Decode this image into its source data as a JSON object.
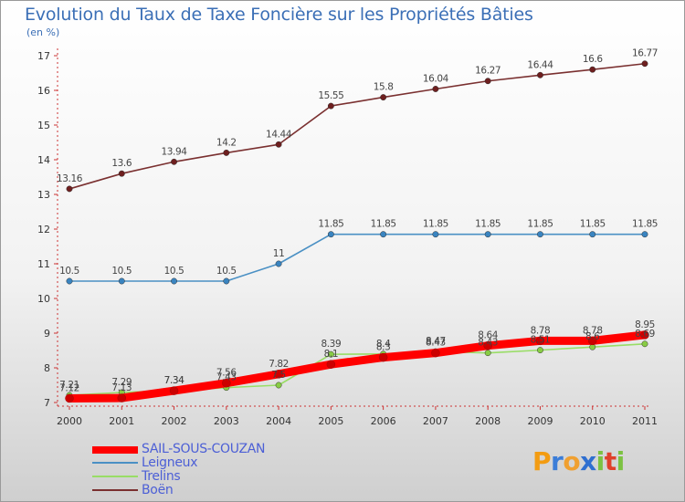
{
  "title": "Evolution du Taux de Taxe Foncière sur les Propriétés Bâties",
  "unit_label": "(en %)",
  "logo": {
    "text": "Proxiti",
    "letters": [
      "P",
      "r",
      "o",
      "x",
      "i",
      "t",
      "i"
    ],
    "colors": [
      "#f39c12",
      "#3b7dd8",
      "#f0a030",
      "#2f6fd0",
      "#7cc242",
      "#e0402a",
      "#7cc242"
    ]
  },
  "chart_data": {
    "type": "line",
    "categories": [
      "2000",
      "2001",
      "2002",
      "2003",
      "2004",
      "2005",
      "2006",
      "2007",
      "2008",
      "2009",
      "2010",
      "2011"
    ],
    "ylim": [
      7,
      17
    ],
    "yticks": [
      "7",
      "8",
      "9",
      "10",
      "11",
      "12",
      "13",
      "14",
      "15",
      "16",
      "17"
    ],
    "series": [
      {
        "name": "SAIL-SOUS-COUZAN",
        "color": "#ff0000",
        "marker": "#cc0000",
        "values": [
          7.12,
          7.13,
          7.34,
          7.56,
          7.82,
          8.1,
          8.3,
          8.43,
          8.64,
          8.78,
          8.78,
          8.95
        ],
        "labels": [
          "7.12",
          "7.13",
          "7.34",
          "7.56",
          "7.82",
          "8.1",
          "8.3",
          "8.43",
          "8.64",
          "8.78",
          "8.78",
          "8.95"
        ]
      },
      {
        "name": "Leigneux",
        "color": "#4a90c4",
        "marker": "#3a84c0",
        "values": [
          10.5,
          10.5,
          10.5,
          10.5,
          11,
          11.85,
          11.85,
          11.85,
          11.85,
          11.85,
          11.85,
          11.85
        ],
        "labels": [
          "10.5",
          "10.5",
          "10.5",
          "10.5",
          "11",
          "11.85",
          "11.85",
          "11.85",
          "11.85",
          "11.85",
          "11.85",
          "11.85"
        ]
      },
      {
        "name": "Trelins",
        "color": "#99dd66",
        "marker": "#88cc44",
        "values": [
          7.21,
          7.29,
          7.34,
          7.43,
          7.5,
          8.39,
          8.4,
          8.47,
          8.43,
          8.51,
          8.6,
          8.69
        ],
        "labels": [
          "7.21",
          "7.29",
          "7.34",
          "7.43",
          "7.5",
          "8.39",
          "8.4",
          "8.47",
          "8.43",
          "8.51",
          "8.6",
          "8.69"
        ]
      },
      {
        "name": "Boën",
        "color": "#7a3030",
        "marker": "#6e1f1f",
        "values": [
          13.16,
          13.6,
          13.94,
          14.2,
          14.44,
          15.55,
          15.8,
          16.04,
          16.27,
          16.44,
          16.6,
          16.77
        ],
        "labels": [
          "13.16",
          "13.6",
          "13.94",
          "14.2",
          "14.44",
          "15.55",
          "15.8",
          "16.04",
          "16.27",
          "16.44",
          "16.6",
          "16.77"
        ]
      }
    ]
  }
}
